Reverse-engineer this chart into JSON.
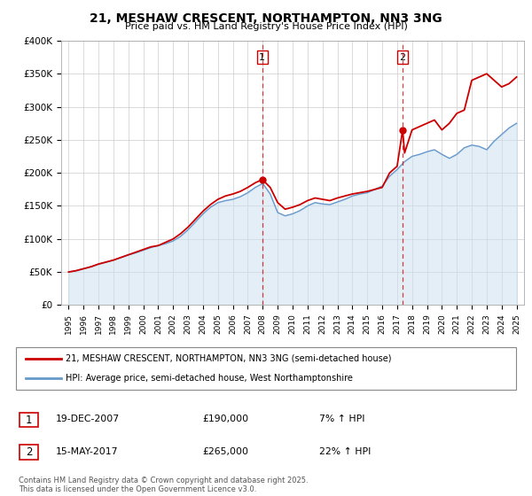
{
  "title": "21, MESHAW CRESCENT, NORTHAMPTON, NN3 3NG",
  "subtitle": "Price paid vs. HM Land Registry's House Price Index (HPI)",
  "footer": "Contains HM Land Registry data © Crown copyright and database right 2025.\nThis data is licensed under the Open Government Licence v3.0.",
  "legend_line1": "21, MESHAW CRESCENT, NORTHAMPTON, NN3 3NG (semi-detached house)",
  "legend_line2": "HPI: Average price, semi-detached house, West Northamptonshire",
  "sale1_label": "1",
  "sale1_date": "19-DEC-2007",
  "sale1_price": "£190,000",
  "sale1_hpi": "7% ↑ HPI",
  "sale2_label": "2",
  "sale2_date": "15-MAY-2017",
  "sale2_price": "£265,000",
  "sale2_hpi": "22% ↑ HPI",
  "red_color": "#cc0000",
  "blue_color": "#6699cc",
  "fill_color": "#cce0f0",
  "grid_color": "#cccccc",
  "background_color": "#ffffff",
  "marker1_x": 2007.97,
  "marker1_y": 190000,
  "marker2_x": 2017.37,
  "marker2_y": 265000,
  "vline1_x": 2007.97,
  "vline2_x": 2017.37,
  "ylim": [
    0,
    400000
  ],
  "xlim": [
    1994.5,
    2025.5
  ],
  "yticks": [
    0,
    50000,
    100000,
    150000,
    200000,
    250000,
    300000,
    350000,
    400000
  ],
  "ytick_labels": [
    "£0",
    "£50K",
    "£100K",
    "£150K",
    "£200K",
    "£250K",
    "£300K",
    "£350K",
    "£400K"
  ],
  "xticks": [
    1995,
    1996,
    1997,
    1998,
    1999,
    2000,
    2001,
    2002,
    2003,
    2004,
    2005,
    2006,
    2007,
    2008,
    2009,
    2010,
    2011,
    2012,
    2013,
    2014,
    2015,
    2016,
    2017,
    2018,
    2019,
    2020,
    2021,
    2022,
    2023,
    2024,
    2025
  ],
  "red_x": [
    1995.0,
    1995.5,
    1996.0,
    1996.5,
    1997.0,
    1997.5,
    1998.0,
    1998.5,
    1999.0,
    1999.5,
    2000.0,
    2000.5,
    2001.0,
    2001.5,
    2002.0,
    2002.5,
    2003.0,
    2003.5,
    2004.0,
    2004.5,
    2005.0,
    2005.5,
    2006.0,
    2006.5,
    2007.0,
    2007.5,
    2007.97,
    2008.5,
    2009.0,
    2009.5,
    2010.0,
    2010.5,
    2011.0,
    2011.5,
    2012.0,
    2012.5,
    2013.0,
    2013.5,
    2014.0,
    2014.5,
    2015.0,
    2015.5,
    2016.0,
    2016.5,
    2017.0,
    2017.37,
    2017.5,
    2018.0,
    2018.5,
    2019.0,
    2019.5,
    2020.0,
    2020.5,
    2021.0,
    2021.5,
    2022.0,
    2022.5,
    2023.0,
    2023.5,
    2024.0,
    2024.5,
    2025.0
  ],
  "red_y": [
    50000,
    52000,
    55000,
    58000,
    62000,
    65000,
    68000,
    72000,
    76000,
    80000,
    84000,
    88000,
    90000,
    95000,
    100000,
    108000,
    118000,
    130000,
    142000,
    152000,
    160000,
    165000,
    168000,
    172000,
    178000,
    185000,
    190000,
    178000,
    155000,
    145000,
    148000,
    152000,
    158000,
    162000,
    160000,
    158000,
    162000,
    165000,
    168000,
    170000,
    172000,
    175000,
    178000,
    200000,
    210000,
    265000,
    230000,
    265000,
    270000,
    275000,
    280000,
    265000,
    275000,
    290000,
    295000,
    340000,
    345000,
    350000,
    340000,
    330000,
    335000,
    345000
  ],
  "blue_x": [
    1995.0,
    1995.5,
    1996.0,
    1996.5,
    1997.0,
    1997.5,
    1998.0,
    1998.5,
    1999.0,
    1999.5,
    2000.0,
    2000.5,
    2001.0,
    2001.5,
    2002.0,
    2002.5,
    2003.0,
    2003.5,
    2004.0,
    2004.5,
    2005.0,
    2005.5,
    2006.0,
    2006.5,
    2007.0,
    2007.5,
    2008.0,
    2008.5,
    2009.0,
    2009.5,
    2010.0,
    2010.5,
    2011.0,
    2011.5,
    2012.0,
    2012.5,
    2013.0,
    2013.5,
    2014.0,
    2014.5,
    2015.0,
    2015.5,
    2016.0,
    2016.5,
    2017.0,
    2017.5,
    2018.0,
    2018.5,
    2019.0,
    2019.5,
    2020.0,
    2020.5,
    2021.0,
    2021.5,
    2022.0,
    2022.5,
    2023.0,
    2023.5,
    2024.0,
    2024.5,
    2025.0
  ],
  "blue_y": [
    50000,
    52000,
    55000,
    58000,
    62000,
    65000,
    68000,
    72000,
    76000,
    79000,
    83000,
    87000,
    90000,
    93000,
    97000,
    104000,
    114000,
    126000,
    138000,
    148000,
    155000,
    158000,
    160000,
    164000,
    170000,
    178000,
    184000,
    168000,
    140000,
    135000,
    138000,
    143000,
    150000,
    155000,
    153000,
    152000,
    156000,
    160000,
    165000,
    168000,
    170000,
    175000,
    180000,
    195000,
    205000,
    217000,
    225000,
    228000,
    232000,
    235000,
    228000,
    222000,
    228000,
    238000,
    242000,
    240000,
    235000,
    248000,
    258000,
    268000,
    275000
  ]
}
